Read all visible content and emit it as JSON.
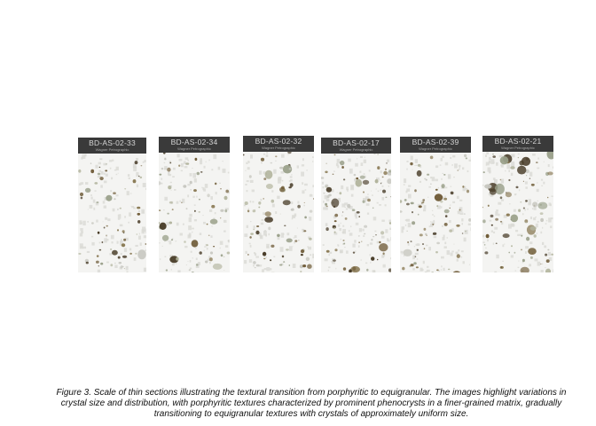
{
  "figure": {
    "caption": "Figure 3. Scale of thin sections illustrating the textural transition from porphyritic to equigranular. The images highlight variations in crystal size and distribution, with porphyritic textures characterized by prominent phenocrysts in a finer-grained matrix, gradually transitioning to equigranular textures with crystals of approximately uniform size.",
    "thin_sections": [
      {
        "id": "BD-AS-02-33",
        "sublabel": "Wagner Petrographic"
      },
      {
        "id": "BD-AS-02-34",
        "sublabel": "Wagner Petrographic"
      },
      {
        "id": "BD-AS-02-32",
        "sublabel": "Wagner Petrographic"
      },
      {
        "id": "BD-AS-02-17",
        "sublabel": "Wagner Petrographic"
      },
      {
        "id": "BD-AS-02-39",
        "sublabel": "Wagner Petrographic"
      },
      {
        "id": "BD-AS-02-21",
        "sublabel": "Wagner Petrographic"
      }
    ],
    "colors": {
      "background": "#ffffff",
      "slide_matrix": "#f4f4f2",
      "label_band": "#3a3a3a",
      "mineral_grains": [
        "#9aa08a",
        "#8a7a55",
        "#6e5a36",
        "#b3b59e",
        "#c7c7c0",
        "#4a3e2a"
      ]
    }
  }
}
